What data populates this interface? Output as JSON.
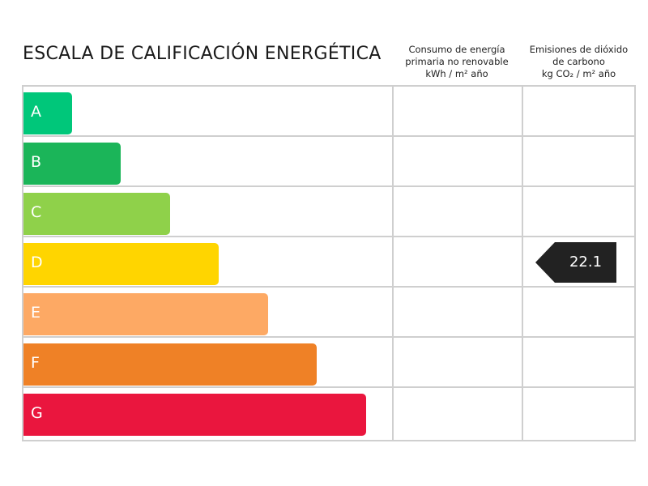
{
  "title": "ESCALA DE CALIFICACIÓN ENERGÉTICA",
  "columns": [
    {
      "line1": "Consumo de energía",
      "line2": "primaria no renovable",
      "unit": "kWh / m² año"
    },
    {
      "line1": "Emisiones de dióxido",
      "line2": "de carbono",
      "unit": "kg CO₂ / m² año"
    }
  ],
  "ratings": [
    {
      "letter": "A",
      "color": "#00c77a",
      "level": 1
    },
    {
      "letter": "B",
      "color": "#1bb559",
      "level": 2
    },
    {
      "letter": "C",
      "color": "#8fd14a",
      "level": 3
    },
    {
      "letter": "D",
      "color": "#ffd500",
      "level": 4
    },
    {
      "letter": "E",
      "color": "#fda964",
      "level": 5
    },
    {
      "letter": "F",
      "color": "#ef8126",
      "level": 6
    },
    {
      "letter": "G",
      "color": "#ea163e",
      "level": 7
    }
  ],
  "result": {
    "emissions_value": "22.1",
    "emissions_rating": "D",
    "consumption_value": "",
    "indicator_color": "#222222"
  }
}
